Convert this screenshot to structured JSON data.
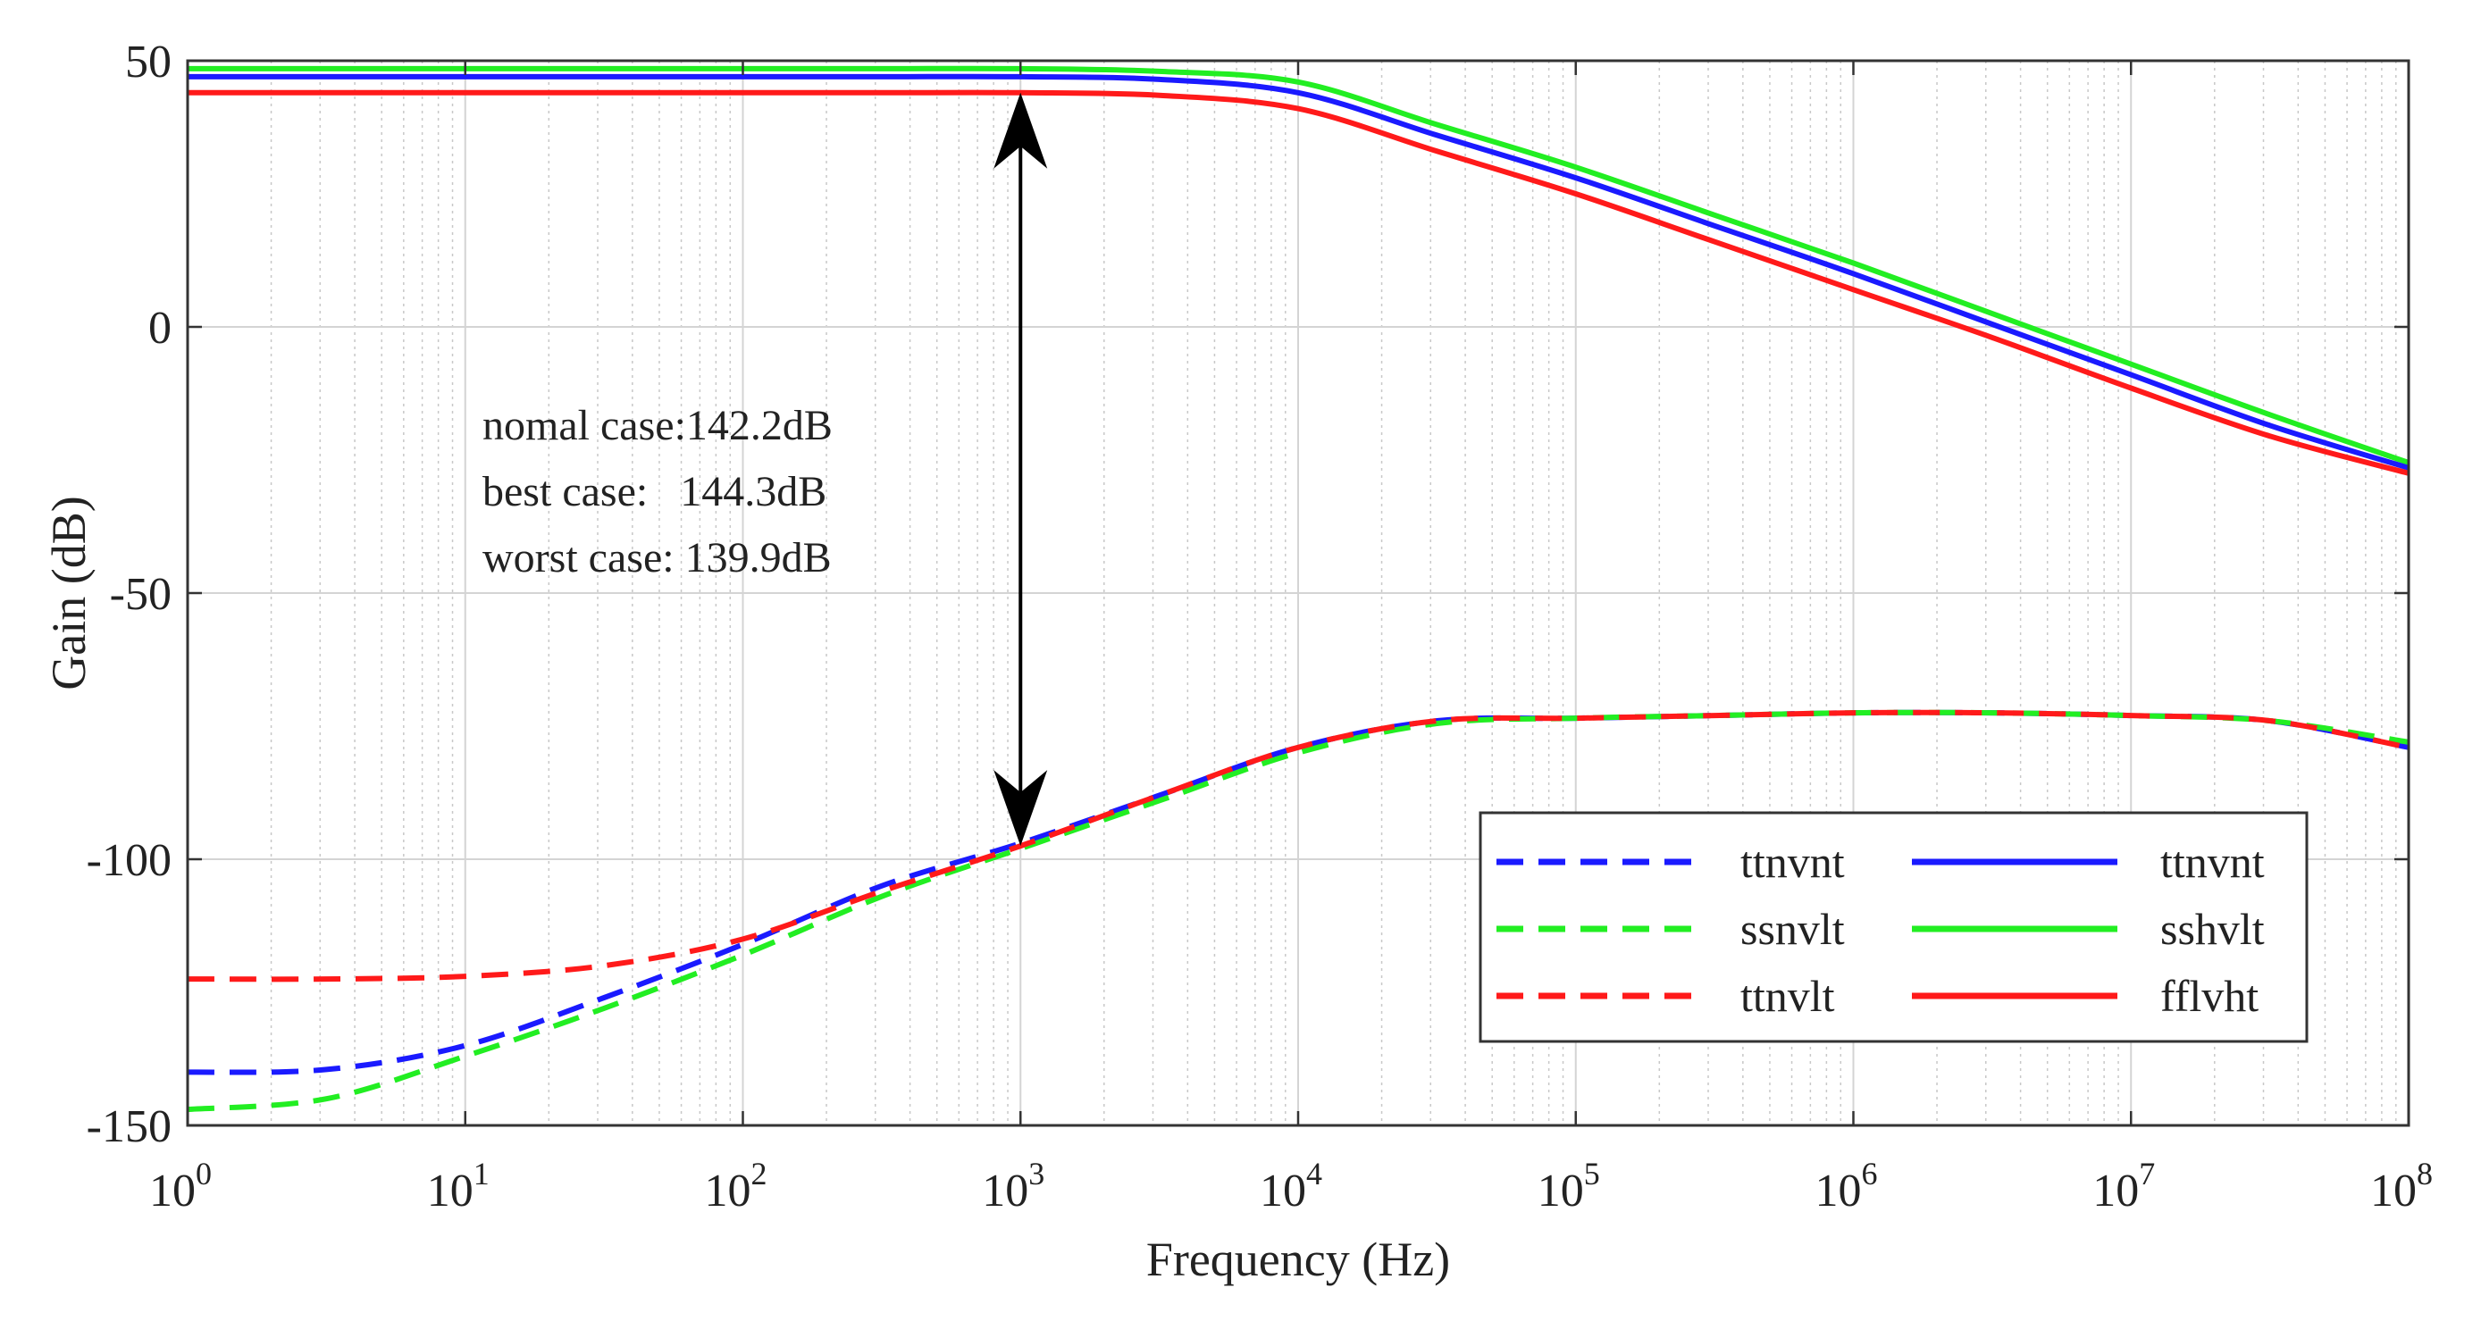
{
  "chart_data": {
    "type": "line",
    "title": "",
    "xlabel": "Frequency (Hz)",
    "ylabel": "Gain (dB)",
    "xscale": "log",
    "xlim": [
      1,
      100000000
    ],
    "ylim": [
      -150,
      50
    ],
    "x_ticks": [
      {
        "base": "10",
        "exp": "0"
      },
      {
        "base": "10",
        "exp": "1"
      },
      {
        "base": "10",
        "exp": "2"
      },
      {
        "base": "10",
        "exp": "3"
      },
      {
        "base": "10",
        "exp": "4"
      },
      {
        "base": "10",
        "exp": "5"
      },
      {
        "base": "10",
        "exp": "6"
      },
      {
        "base": "10",
        "exp": "7"
      },
      {
        "base": "10",
        "exp": "8"
      }
    ],
    "y_ticks": [
      "50",
      "0",
      "-50",
      "-100",
      "-150"
    ],
    "grid": true,
    "x_log_decades": [
      0,
      0.5,
      1,
      1.5,
      2,
      2.5,
      3,
      3.5,
      4,
      4.5,
      5,
      5.5,
      6,
      6.5,
      7,
      7.5,
      8
    ],
    "series": [
      {
        "name": "ttnvnt",
        "style": "dashed",
        "color": "#1a1aff",
        "values": [
          -140,
          -139.5,
          -135,
          -126,
          -116,
          -105,
          -97,
          -88,
          -79,
          -74,
          -73.5,
          -73,
          -72.5,
          -72.5,
          -73,
          -74,
          -79
        ]
      },
      {
        "name": "ssnvlt",
        "style": "dashed",
        "color": "#22ee22",
        "values": [
          -147,
          -145,
          -137,
          -128,
          -118,
          -107,
          -98,
          -89,
          -80,
          -74.5,
          -73.5,
          -73,
          -72.5,
          -72.5,
          -73,
          -74,
          -78
        ]
      },
      {
        "name": "ttnvlt",
        "style": "dashed",
        "color": "#ff1a1a",
        "values": [
          -122.5,
          -122.5,
          -122,
          -120,
          -115,
          -106,
          -97.5,
          -88,
          -79,
          -74,
          -73.5,
          -73,
          -72.5,
          -72.5,
          -73,
          -74,
          -79
        ]
      },
      {
        "name": "ttnvnt",
        "style": "solid",
        "color": "#1a1aff",
        "values": [
          47,
          47,
          47,
          47,
          47,
          47,
          47,
          46.5,
          44,
          36,
          28,
          19,
          10,
          0.5,
          -9,
          -18.5,
          -26.5
        ]
      },
      {
        "name": "sshvlt",
        "style": "solid",
        "color": "#22ee22",
        "values": [
          48.5,
          48.5,
          48.5,
          48.5,
          48.5,
          48.5,
          48.5,
          48,
          46,
          38,
          30,
          21,
          12,
          2.5,
          -7,
          -16.5,
          -25.5
        ]
      },
      {
        "name": "fflvht",
        "style": "solid",
        "color": "#ff1a1a",
        "values": [
          44,
          44,
          44,
          44,
          44,
          44,
          44,
          43.5,
          41,
          33,
          25,
          16,
          7,
          -2,
          -11.5,
          -20.5,
          -27.5
        ]
      }
    ],
    "arrow": {
      "x": 1000,
      "y_top": 44,
      "y_bottom": -97.5
    },
    "annotations": [
      "nomal case:142.2dB",
      "best case:   144.3dB",
      "worst case: 139.9dB"
    ],
    "legend": {
      "placement": "bottom-right",
      "columns": 2
    }
  },
  "colors": {
    "blue": "#1a1aff",
    "green": "#22ee22",
    "red": "#ff1a1a"
  }
}
